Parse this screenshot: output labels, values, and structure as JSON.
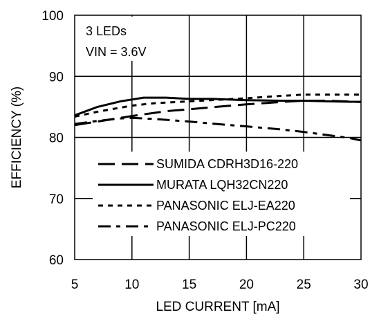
{
  "chart_data": {
    "type": "line",
    "xlabel": "LED CURRENT [mA]",
    "ylabel": "EFFICIENCY (%)",
    "xlim": [
      5,
      30
    ],
    "ylim": [
      60,
      100
    ],
    "xticks": [
      5,
      10,
      15,
      20,
      25,
      30
    ],
    "yticks": [
      60,
      70,
      80,
      90,
      100
    ],
    "grid": true,
    "annotations": [
      "3 LEDs",
      "VIN = 3.6V"
    ],
    "legend_position": "lower-center",
    "series": [
      {
        "name": "SUMIDA CDRH3D16-220",
        "line_style": "long-dash",
        "x": [
          5,
          7,
          10,
          13,
          15,
          18,
          20,
          23,
          25,
          27,
          30
        ],
        "y": [
          82.0,
          82.6,
          83.5,
          84.3,
          84.6,
          85.1,
          85.4,
          85.8,
          86.0,
          86.0,
          85.8
        ]
      },
      {
        "name": "MURATA LQH32CN220",
        "line_style": "solid",
        "x": [
          5,
          7,
          9,
          10,
          11,
          12,
          13,
          15,
          17,
          20,
          23,
          25,
          27,
          30
        ],
        "y": [
          83.6,
          85.0,
          85.9,
          86.2,
          86.5,
          86.5,
          86.5,
          86.3,
          86.3,
          86.1,
          86.0,
          86.0,
          85.9,
          85.8
        ]
      },
      {
        "name": "PANASONIC ELJ-EA220",
        "line_style": "dotted",
        "x": [
          5,
          7,
          10,
          12,
          15,
          18,
          20,
          23,
          25,
          27,
          30
        ],
        "y": [
          83.4,
          84.2,
          85.2,
          85.6,
          85.9,
          86.2,
          86.4,
          86.8,
          87.0,
          87.0,
          87.0
        ]
      },
      {
        "name": "PANASONIC ELJ-PC220",
        "line_style": "dash-dot",
        "x": [
          5,
          7,
          9,
          10,
          12,
          15,
          18,
          20,
          23,
          25,
          27,
          29,
          30
        ],
        "y": [
          82.2,
          82.7,
          83.1,
          83.2,
          83.0,
          82.6,
          82.1,
          81.8,
          81.3,
          80.9,
          80.4,
          79.9,
          79.5
        ]
      }
    ]
  }
}
